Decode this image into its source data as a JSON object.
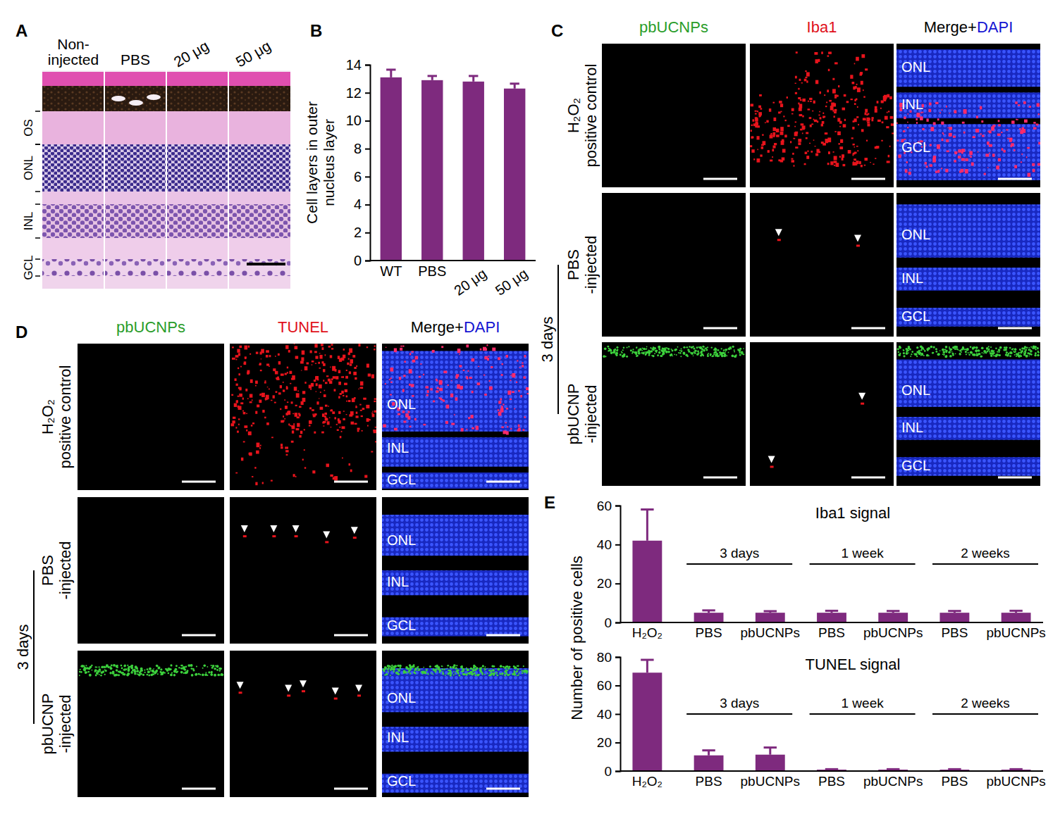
{
  "chart_data": [
    {
      "type": "bar",
      "panel": "B",
      "categories": [
        "WT",
        "PBS",
        "20 μg",
        "50 μg"
      ],
      "values": [
        13.1,
        12.9,
        12.8,
        12.3
      ],
      "errors": [
        0.55,
        0.3,
        0.4,
        0.35
      ],
      "y_label": "Cell layers in outer nucleus layer",
      "color": "#7e2a7e",
      "ylim": [
        0,
        14
      ],
      "yticks": [
        0,
        2,
        4,
        6,
        8,
        10,
        12,
        14
      ]
    },
    {
      "type": "bar",
      "panel": "E",
      "title": "Iba1 signal",
      "categories": [
        "H₂O₂",
        "PBS",
        "pbUCNPs",
        "PBS",
        "pbUCNPs",
        "PBS",
        "pbUCNPs"
      ],
      "groups": [
        {
          "label": "3 days",
          "from": 1,
          "to": 2
        },
        {
          "label": "1 week",
          "from": 3,
          "to": 4
        },
        {
          "label": "2 weeks",
          "from": 5,
          "to": 6
        }
      ],
      "values": [
        42,
        5,
        5,
        5,
        5,
        5,
        5
      ],
      "errors": [
        16,
        1.2,
        0.8,
        1,
        0.9,
        0.9,
        1
      ],
      "color": "#7e2a7e",
      "ylim": [
        0,
        60
      ],
      "yticks": [
        0,
        20,
        40,
        60
      ]
    },
    {
      "type": "bar",
      "title": "TUNEL signal",
      "categories": [
        "H₂O₂",
        "PBS",
        "pbUCNPs",
        "PBS",
        "pbUCNPs",
        "PBS",
        "pbUCNPs"
      ],
      "groups": [
        {
          "label": "3 days",
          "from": 1,
          "to": 2
        },
        {
          "label": "1 week",
          "from": 3,
          "to": 4
        },
        {
          "label": "2 weeks",
          "from": 5,
          "to": 6
        }
      ],
      "values": [
        69,
        11,
        11.5,
        1,
        1,
        1,
        1
      ],
      "errors": [
        9,
        3.5,
        5,
        0.3,
        0.3,
        0.3,
        0.3
      ],
      "y_label": "Number of positive cells",
      "color": "#7e2a7e",
      "ylim": [
        0,
        80
      ],
      "yticks": [
        0,
        20,
        40,
        60,
        80
      ]
    }
  ],
  "image_panels": {
    "A": {
      "panel": "A",
      "columns": [
        [
          "Non-",
          "injected"
        ],
        [
          "PBS"
        ],
        [
          "20 μg"
        ],
        [
          "50 μg"
        ]
      ],
      "layers": [
        "OS",
        "ONL",
        "INL",
        "GCL"
      ]
    },
    "C": {
      "panel": "C",
      "headers": [
        {
          "parts": [
            {
              "text": "pbUCNPs",
              "color": "#2a9d2a"
            }
          ]
        },
        {
          "parts": [
            {
              "text": "Iba1",
              "color": "#e0101a"
            }
          ]
        },
        {
          "parts": [
            {
              "text": "Merge+",
              "color": "#000000"
            },
            {
              "text": "DAPI",
              "color": "#1414d2"
            }
          ]
        }
      ],
      "rows": [
        [
          "H₂O₂",
          "positive control"
        ],
        [
          "PBS",
          "-injected"
        ],
        [
          "pbUCNP",
          "-injected"
        ]
      ],
      "group": "3 days",
      "layer_labels": [
        "ONL",
        "INL",
        "GCL"
      ]
    },
    "D": {
      "panel": "D",
      "headers": [
        {
          "parts": [
            {
              "text": "pbUCNPs",
              "color": "#2a9d2a"
            }
          ]
        },
        {
          "parts": [
            {
              "text": "TUNEL",
              "color": "#e0101a"
            }
          ]
        },
        {
          "parts": [
            {
              "text": "Merge+",
              "color": "#000000"
            },
            {
              "text": "DAPI",
              "color": "#1414d2"
            }
          ]
        }
      ],
      "rows": [
        [
          "H₂O₂",
          "positive control"
        ],
        [
          "PBS",
          "-injected"
        ],
        [
          "pbUCNP",
          "-injected"
        ]
      ],
      "group": "3 days",
      "layer_labels": [
        "ONL",
        "INL",
        "GCL"
      ]
    }
  }
}
